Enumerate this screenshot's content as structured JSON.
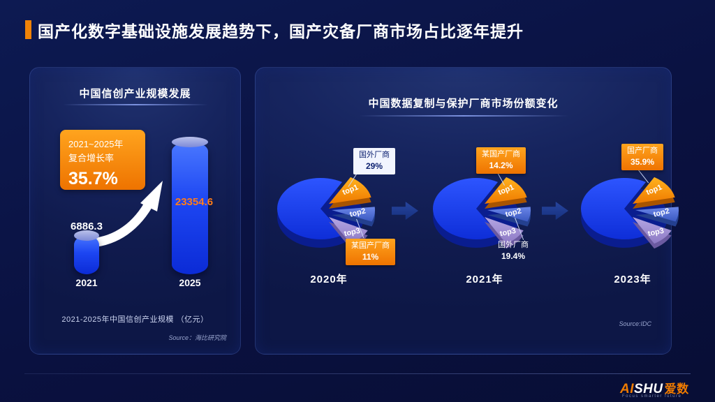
{
  "page": {
    "title": "国产化数字基础设施发展趋势下，国产灾备厂商市场占比逐年提升"
  },
  "left_panel": {
    "title": "中国信创产业规模发展",
    "badge_line1": "2021~2025年",
    "badge_line2": "复合增长率",
    "badge_value": "35.7%",
    "value_2021": "6886.3",
    "value_2025": "23354.6",
    "axis_2021": "2021",
    "axis_2025": "2025",
    "caption": "2021-2025年中国信创产业规模 （亿元）",
    "source": "Source：海比研究院"
  },
  "right_panel": {
    "title": "中国数据复制与保护厂商市场份额变化",
    "source": "Source:IDC",
    "pies": [
      {
        "year": "2020年",
        "top1": "top1",
        "top2": "top2",
        "top3": "top3",
        "callout_top": {
          "name": "国外厂商",
          "value": "29%"
        },
        "callout_bottom": {
          "name": "某国产厂商",
          "value": "11%"
        }
      },
      {
        "year": "2021年",
        "top1": "top1",
        "top2": "top2",
        "top3": "top3",
        "callout_top": {
          "name": "某国产厂商",
          "value": "14.2%"
        },
        "callout_bottom": {
          "name": "国外厂商",
          "value": "19.4%"
        }
      },
      {
        "year": "2023年",
        "top1": "top1",
        "top2": "top2",
        "top3": "top3",
        "callout_top": {
          "name": "国产厂商",
          "value": "35.9%"
        }
      }
    ]
  },
  "footer": {
    "logo_ai": "AI",
    "logo_shu": "SHU",
    "logo_cn": "爱数",
    "tagline": "Focus smarter future"
  },
  "chart_data": [
    {
      "type": "bar",
      "title": "中国信创产业规模发展",
      "categories": [
        "2021",
        "2025"
      ],
      "values": [
        6886.3,
        23354.6
      ],
      "ylabel": "亿元",
      "annotations": [
        "2021~2025年 复合增长率 35.7%"
      ],
      "caption": "2021-2025年中国信创产业规模 （亿元）",
      "source": "Source：海比研究院",
      "grid": false,
      "value_label_colors": [
        "#ffffff",
        "#ff7d19"
      ]
    },
    {
      "type": "pie",
      "title": "中国数据复制与保护厂商市场份额变化",
      "source": "Source:IDC",
      "slice_tags": [
        "top1",
        "top2",
        "top3"
      ],
      "pies": [
        {
          "year": "2020年",
          "labeled_slices": [
            {
              "label": "国外厂商 (top1)",
              "value": 29
            },
            {
              "label": "某国产厂商 (top3)",
              "value": 11
            }
          ]
        },
        {
          "year": "2021年",
          "labeled_slices": [
            {
              "label": "某国产厂商 (top1)",
              "value": 14.2
            },
            {
              "label": "国外厂商 (top3)",
              "value": 19.4
            }
          ]
        },
        {
          "year": "2023年",
          "labeled_slices": [
            {
              "label": "国产厂商 (top1)",
              "value": 35.9
            }
          ]
        }
      ]
    }
  ]
}
